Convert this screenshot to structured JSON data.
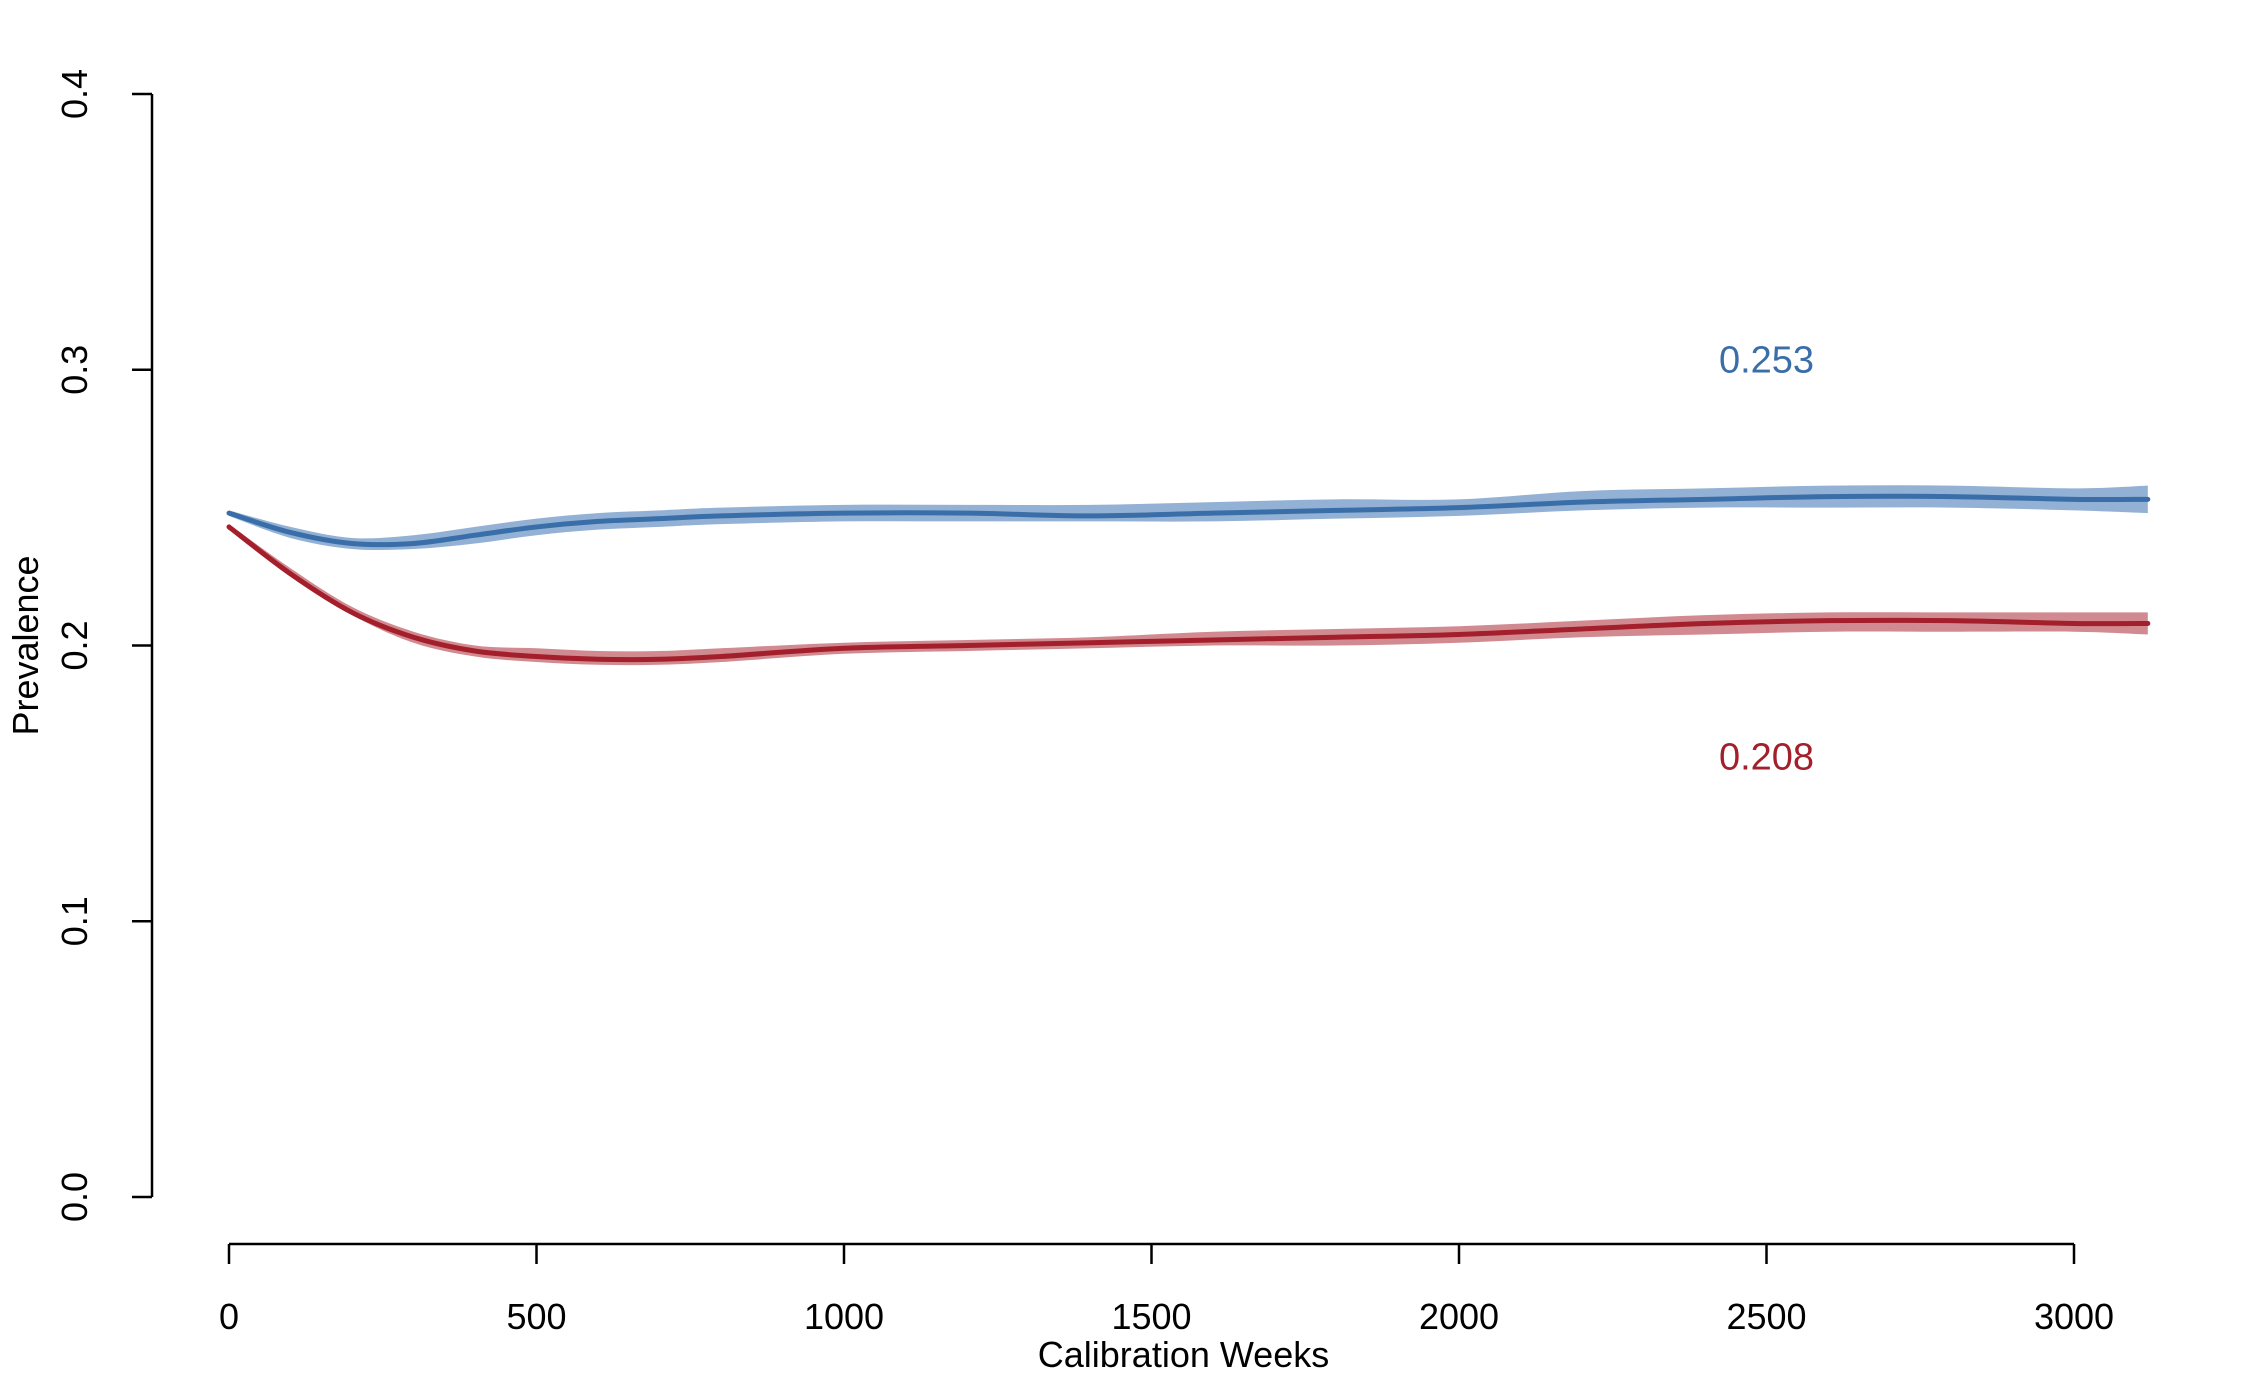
{
  "chart_data": {
    "type": "line",
    "title": "",
    "xlabel": "Calibration Weeks",
    "ylabel": "Prevalence",
    "xlim": [
      0,
      3120
    ],
    "ylim": [
      0,
      0.4
    ],
    "xticks": [
      0,
      500,
      1000,
      1500,
      2000,
      2500,
      3000
    ],
    "xtick_labels": [
      "0",
      "500",
      "1000",
      "1500",
      "2000",
      "2500",
      "3000"
    ],
    "yticks": [
      0.0,
      0.1,
      0.2,
      0.3,
      0.4
    ],
    "ytick_labels": [
      "0.0",
      "0.1",
      "0.2",
      "0.3",
      "0.4"
    ],
    "grid": false,
    "legend": "none",
    "series": [
      {
        "color": "#3a6ea8",
        "band_color": "#6f97c6",
        "end_label": "0.253",
        "x": [
          0,
          100,
          200,
          300,
          400,
          500,
          600,
          700,
          800,
          1000,
          1200,
          1400,
          1600,
          1800,
          2000,
          2200,
          2400,
          2600,
          2800,
          3000,
          3120
        ],
        "y": [
          0.248,
          0.241,
          0.237,
          0.237,
          0.24,
          0.243,
          0.245,
          0.246,
          0.247,
          0.248,
          0.248,
          0.247,
          0.248,
          0.249,
          0.25,
          0.252,
          0.253,
          0.254,
          0.254,
          0.253,
          0.253
        ],
        "lower": [
          0.247,
          0.239,
          0.235,
          0.235,
          0.237,
          0.24,
          0.242,
          0.243,
          0.244,
          0.245,
          0.245,
          0.245,
          0.245,
          0.246,
          0.247,
          0.249,
          0.25,
          0.25,
          0.25,
          0.249,
          0.248
        ],
        "upper": [
          0.249,
          0.243,
          0.239,
          0.24,
          0.243,
          0.246,
          0.248,
          0.249,
          0.25,
          0.251,
          0.251,
          0.251,
          0.252,
          0.253,
          0.253,
          0.256,
          0.257,
          0.258,
          0.258,
          0.257,
          0.258
        ]
      },
      {
        "color": "#a21f2b",
        "band_color": "#c2636b",
        "end_label": "0.208",
        "x": [
          0,
          100,
          200,
          300,
          400,
          500,
          600,
          700,
          800,
          1000,
          1200,
          1400,
          1600,
          1800,
          2000,
          2200,
          2400,
          2600,
          2800,
          3000,
          3120
        ],
        "y": [
          0.243,
          0.226,
          0.212,
          0.203,
          0.198,
          0.196,
          0.195,
          0.195,
          0.196,
          0.199,
          0.2,
          0.201,
          0.202,
          0.203,
          0.204,
          0.206,
          0.208,
          0.209,
          0.209,
          0.208,
          0.208
        ],
        "lower": [
          0.242,
          0.225,
          0.211,
          0.201,
          0.196,
          0.194,
          0.193,
          0.193,
          0.194,
          0.197,
          0.198,
          0.199,
          0.2,
          0.2,
          0.201,
          0.203,
          0.204,
          0.205,
          0.205,
          0.205,
          0.204
        ],
        "upper": [
          0.244,
          0.228,
          0.214,
          0.205,
          0.2,
          0.199,
          0.198,
          0.198,
          0.199,
          0.201,
          0.202,
          0.203,
          0.205,
          0.206,
          0.207,
          0.209,
          0.211,
          0.212,
          0.212,
          0.212,
          0.212
        ]
      }
    ]
  }
}
